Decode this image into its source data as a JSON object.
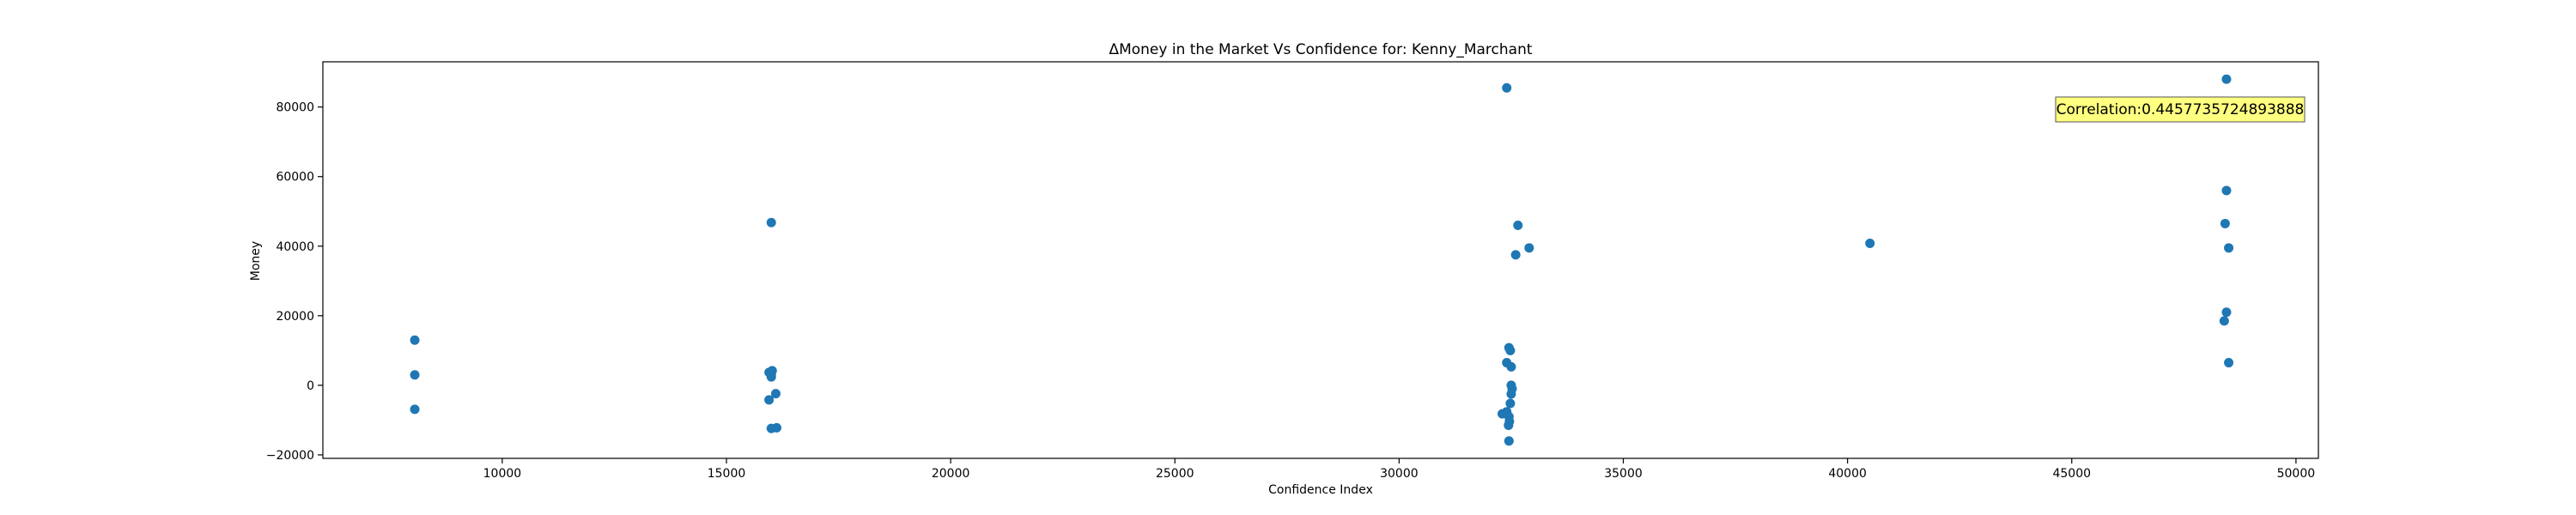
{
  "chart_data": {
    "type": "scatter",
    "title": "ΔMoney in the Market Vs Confidence for: Kenny_Marchant",
    "xlabel": "Confidence Index",
    "ylabel": "Money",
    "xlim": [
      6000,
      50500
    ],
    "ylim": [
      -21000,
      93000
    ],
    "xticks": [
      10000,
      15000,
      20000,
      25000,
      30000,
      35000,
      40000,
      45000,
      50000
    ],
    "yticks": [
      -20000,
      0,
      20000,
      40000,
      60000,
      80000
    ],
    "grid": false,
    "marker_color": "#1f77b4",
    "annotation": {
      "text": "Correlation:0.4457735724893888",
      "position": "top-right",
      "background": "#ffff80"
    },
    "points": [
      {
        "x": 8050,
        "y": 13000
      },
      {
        "x": 8050,
        "y": 3000
      },
      {
        "x": 8050,
        "y": -6900
      },
      {
        "x": 15950,
        "y": 3700
      },
      {
        "x": 16000,
        "y": 3000
      },
      {
        "x": 16020,
        "y": 4200
      },
      {
        "x": 16000,
        "y": 2400
      },
      {
        "x": 16100,
        "y": -2400
      },
      {
        "x": 15950,
        "y": -4200
      },
      {
        "x": 16000,
        "y": -12400
      },
      {
        "x": 16120,
        "y": -12200
      },
      {
        "x": 16000,
        "y": 46800
      },
      {
        "x": 32400,
        "y": 85500
      },
      {
        "x": 32650,
        "y": 46000
      },
      {
        "x": 32900,
        "y": 39500
      },
      {
        "x": 32600,
        "y": 37500
      },
      {
        "x": 32450,
        "y": 10800
      },
      {
        "x": 32480,
        "y": 10000
      },
      {
        "x": 32400,
        "y": 6500
      },
      {
        "x": 32500,
        "y": 5300
      },
      {
        "x": 32500,
        "y": 0
      },
      {
        "x": 32520,
        "y": -1000
      },
      {
        "x": 32500,
        "y": -2500
      },
      {
        "x": 32480,
        "y": -5200
      },
      {
        "x": 32400,
        "y": -7600
      },
      {
        "x": 32300,
        "y": -8200
      },
      {
        "x": 32450,
        "y": -9000
      },
      {
        "x": 32460,
        "y": -10400
      },
      {
        "x": 32440,
        "y": -11500
      },
      {
        "x": 32450,
        "y": -16000
      },
      {
        "x": 40500,
        "y": 40800
      },
      {
        "x": 48450,
        "y": 88000
      },
      {
        "x": 48450,
        "y": 56000
      },
      {
        "x": 48420,
        "y": 46500
      },
      {
        "x": 48500,
        "y": 39500
      },
      {
        "x": 48450,
        "y": 21000
      },
      {
        "x": 48400,
        "y": 18500
      },
      {
        "x": 48500,
        "y": 6500
      }
    ]
  }
}
